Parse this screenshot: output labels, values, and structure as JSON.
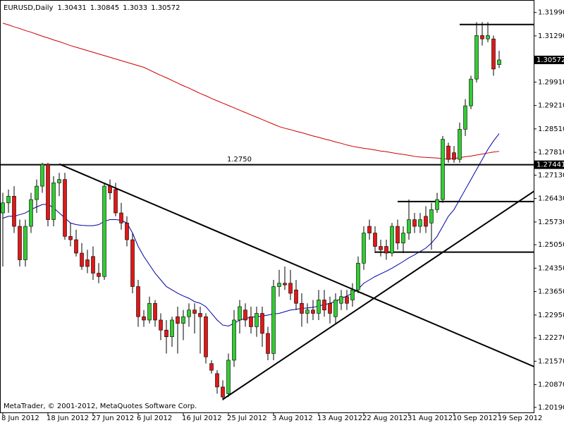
{
  "chart_data": {
    "type": "candlestick",
    "symbol": "EURUSD,Daily",
    "footer": "MetaTrader, © 2001-2012, MetaQuotes Software Corp.",
    "annotation": "1.2750",
    "up_color": "#33cc33",
    "down_color": "#e01818",
    "categories": [
      "8 Jun 2012",
      null,
      null,
      null,
      null,
      null,
      null,
      null,
      "18 Jun 2012",
      null,
      null,
      null,
      null,
      null,
      null,
      null,
      "27 Jun 2012",
      null,
      null,
      null,
      null,
      null,
      null,
      null,
      "6 Jul 2012",
      null,
      null,
      null,
      null,
      null,
      null,
      null,
      "16 Jul 2012",
      null,
      null,
      null,
      null,
      null,
      null,
      null,
      "25 Jul 2012",
      null,
      null,
      null,
      null,
      null,
      null,
      null,
      "3 Aug 2012",
      null,
      null,
      null,
      null,
      null,
      null,
      null,
      "13 Aug 2012",
      null,
      null,
      null,
      null,
      null,
      null,
      null,
      "22 Aug 2012",
      null,
      null,
      null,
      null,
      null,
      null,
      null,
      "31 Aug 2012",
      null,
      null,
      null,
      null,
      null,
      null,
      null,
      "10 Sep 2012",
      null,
      null,
      null,
      null,
      null,
      null,
      null,
      "19 Sep 2012"
    ],
    "ohlc": [
      [
        1.26,
        1.266,
        1.244,
        1.263
      ],
      [
        1.263,
        1.267,
        1.26,
        1.265
      ],
      [
        1.265,
        1.268,
        1.254,
        1.256
      ],
      [
        1.256,
        1.258,
        1.244,
        1.246
      ],
      [
        1.246,
        1.258,
        1.244,
        1.256
      ],
      [
        1.256,
        1.266,
        1.254,
        1.264
      ],
      [
        1.264,
        1.27,
        1.26,
        1.268
      ],
      [
        1.268,
        1.275,
        1.266,
        1.2745
      ],
      [
        1.2745,
        1.275,
        1.256,
        1.258
      ],
      [
        1.258,
        1.271,
        1.256,
        1.269
      ],
      [
        1.269,
        1.272,
        1.265,
        1.27
      ],
      [
        1.27,
        1.272,
        1.252,
        1.253
      ],
      [
        1.253,
        1.257,
        1.25,
        1.252
      ],
      [
        1.252,
        1.255,
        1.247,
        1.248
      ],
      [
        1.248,
        1.251,
        1.243,
        1.244
      ],
      [
        1.246,
        1.249,
        1.242,
        1.244
      ],
      [
        1.247,
        1.25,
        1.24,
        1.242
      ],
      [
        1.242,
        1.245,
        1.239,
        1.241
      ],
      [
        1.241,
        1.269,
        1.24,
        1.268
      ],
      [
        1.268,
        1.27,
        1.264,
        1.266
      ],
      [
        1.267,
        1.269,
        1.259,
        1.26
      ],
      [
        1.26,
        1.263,
        1.255,
        1.257
      ],
      [
        1.257,
        1.259,
        1.25,
        1.252
      ],
      [
        1.252,
        1.254,
        1.236,
        1.238
      ],
      [
        1.238,
        1.24,
        1.226,
        1.229
      ],
      [
        1.229,
        1.231,
        1.226,
        1.228
      ],
      [
        1.228,
        1.235,
        1.227,
        1.233
      ],
      [
        1.233,
        1.234,
        1.226,
        1.228
      ],
      [
        1.228,
        1.23,
        1.222,
        1.225
      ],
      [
        1.225,
        1.228,
        1.218,
        1.223
      ],
      [
        1.223,
        1.229,
        1.22,
        1.228
      ],
      [
        1.229,
        1.232,
        1.218,
        1.227
      ],
      [
        1.227,
        1.231,
        1.222,
        1.229
      ],
      [
        1.229,
        1.233,
        1.226,
        1.231
      ],
      [
        1.231,
        1.233,
        1.224,
        1.23
      ],
      [
        1.23,
        1.232,
        1.218,
        1.229
      ],
      [
        1.229,
        1.23,
        1.215,
        1.217
      ],
      [
        1.215,
        1.216,
        1.212,
        1.213
      ],
      [
        1.212,
        1.213,
        1.206,
        1.208
      ],
      [
        1.208,
        1.21,
        1.204,
        1.205
      ],
      [
        1.206,
        1.218,
        1.205,
        1.216
      ],
      [
        1.216,
        1.231,
        1.214,
        1.228
      ],
      [
        1.228,
        1.234,
        1.224,
        1.232
      ],
      [
        1.231,
        1.233,
        1.226,
        1.228
      ],
      [
        1.229,
        1.232,
        1.224,
        1.226
      ],
      [
        1.226,
        1.232,
        1.223,
        1.23
      ],
      [
        1.23,
        1.232,
        1.22,
        1.224
      ],
      [
        1.224,
        1.226,
        1.216,
        1.218
      ],
      [
        1.218,
        1.24,
        1.216,
        1.238
      ],
      [
        1.238,
        1.243,
        1.235,
        1.239
      ],
      [
        1.239,
        1.244,
        1.237,
        1.2385
      ],
      [
        1.239,
        1.243,
        1.234,
        1.236
      ],
      [
        1.237,
        1.24,
        1.231,
        1.233
      ],
      [
        1.233,
        1.236,
        1.226,
        1.23
      ],
      [
        1.23,
        1.233,
        1.227,
        1.231
      ],
      [
        1.231,
        1.234,
        1.228,
        1.23
      ],
      [
        1.23,
        1.237,
        1.228,
        1.234
      ],
      [
        1.234,
        1.237,
        1.229,
        1.231
      ],
      [
        1.233,
        1.235,
        1.227,
        1.23
      ],
      [
        1.229,
        1.236,
        1.227,
        1.234
      ],
      [
        1.233,
        1.237,
        1.231,
        1.235
      ],
      [
        1.235,
        1.237,
        1.231,
        1.233
      ],
      [
        1.234,
        1.239,
        1.232,
        1.237
      ],
      [
        1.237,
        1.247,
        1.236,
        1.245
      ],
      [
        1.245,
        1.256,
        1.243,
        1.254
      ],
      [
        1.256,
        1.258,
        1.252,
        1.254
      ],
      [
        1.254,
        1.256,
        1.248,
        1.25
      ],
      [
        1.25,
        1.252,
        1.247,
        1.249
      ],
      [
        1.25,
        1.252,
        1.246,
        1.248
      ],
      [
        1.248,
        1.257,
        1.247,
        1.256
      ],
      [
        1.256,
        1.258,
        1.249,
        1.251
      ],
      [
        1.251,
        1.256,
        1.248,
        1.254
      ],
      [
        1.254,
        1.264,
        1.252,
        1.258
      ],
      [
        1.258,
        1.26,
        1.254,
        1.256
      ],
      [
        1.256,
        1.26,
        1.254,
        1.258
      ],
      [
        1.259,
        1.262,
        1.254,
        1.256
      ],
      [
        1.257,
        1.263,
        1.249,
        1.261
      ],
      [
        1.261,
        1.266,
        1.26,
        1.264
      ],
      [
        1.264,
        1.283,
        1.263,
        1.282
      ],
      [
        1.28,
        1.281,
        1.275,
        1.276
      ],
      [
        1.278,
        1.28,
        1.275,
        1.276
      ],
      [
        1.276,
        1.287,
        1.275,
        1.285
      ],
      [
        1.285,
        1.294,
        1.283,
        1.292
      ],
      [
        1.292,
        1.301,
        1.291,
        1.3
      ],
      [
        1.3,
        1.317,
        1.299,
        1.313
      ],
      [
        1.313,
        1.317,
        1.31,
        1.312
      ],
      [
        1.312,
        1.317,
        1.311,
        1.313
      ],
      [
        1.312,
        1.313,
        1.301,
        1.303
      ],
      [
        1.30431,
        1.30845,
        1.3033,
        1.30572
      ]
    ],
    "series": [
      {
        "color": "#cc0000",
        "values": [
          1.3167,
          1.3162,
          1.3156,
          1.3151,
          1.3145,
          1.314,
          1.3134,
          1.3128,
          1.3123,
          1.3117,
          1.3112,
          1.3106,
          1.31,
          1.3095,
          1.309,
          1.3085,
          1.308,
          1.3075,
          1.307,
          1.3065,
          1.306,
          1.3055,
          1.305,
          1.3045,
          1.304,
          1.3035,
          1.3027,
          1.3019,
          1.3011,
          1.3004,
          1.2996,
          1.2988,
          1.298,
          1.2973,
          1.2965,
          1.2957,
          1.295,
          1.2942,
          1.2935,
          1.2928,
          1.2921,
          1.2914,
          1.2907,
          1.29,
          1.2893,
          1.2886,
          1.2879,
          1.2872,
          1.2865,
          1.2858,
          1.2853,
          1.2849,
          1.2844,
          1.284,
          1.2835,
          1.283,
          1.2826,
          1.2821,
          1.2817,
          1.2812,
          1.2808,
          1.2803,
          1.2799,
          1.2796,
          1.2793,
          1.2791,
          1.2788,
          1.2785,
          1.2783,
          1.278,
          1.2777,
          1.2775,
          1.2772,
          1.2769,
          1.2767,
          1.2766,
          1.2765,
          1.2764,
          1.2762,
          1.2761,
          1.2763,
          1.2765,
          1.2768,
          1.277,
          1.2773,
          1.2776,
          1.2779,
          1.2782,
          1.2784
        ]
      },
      {
        "color": "#0000aa",
        "values": [
          1.2584,
          1.259,
          1.259,
          1.2595,
          1.26,
          1.261,
          1.2618,
          1.2625,
          1.2626,
          1.2615,
          1.26,
          1.2585,
          1.257,
          1.2565,
          1.2563,
          1.2562,
          1.2562,
          1.2565,
          1.2575,
          1.258,
          1.258,
          1.2578,
          1.257,
          1.254,
          1.25,
          1.247,
          1.2445,
          1.242,
          1.24,
          1.238,
          1.237,
          1.236,
          1.2352,
          1.2345,
          1.2335,
          1.233,
          1.232,
          1.23,
          1.228,
          1.2265,
          1.2262,
          1.227,
          1.228,
          1.2285,
          1.2288,
          1.229,
          1.2292,
          1.2295,
          1.2298,
          1.23,
          1.2305,
          1.231,
          1.2312,
          1.2315,
          1.2316,
          1.2318,
          1.2322,
          1.2326,
          1.233,
          1.2336,
          1.2344,
          1.2352,
          1.236,
          1.2372,
          1.239,
          1.24,
          1.241,
          1.2418,
          1.2426,
          1.2435,
          1.2445,
          1.2455,
          1.2466,
          1.2475,
          1.2485,
          1.2495,
          1.251,
          1.253,
          1.256,
          1.259,
          1.261,
          1.264,
          1.267,
          1.27,
          1.273,
          1.276,
          1.279,
          1.2815,
          1.2837
        ]
      }
    ],
    "hlines": [
      {
        "price": 1.27441,
        "from": -1
      },
      {
        "price": 1.3163,
        "from": 81
      },
      {
        "price": 1.2634,
        "from": 70
      },
      {
        "price": 1.2483,
        "from": 66
      }
    ],
    "trendlines": [
      {
        "start": [
          10,
          1.2746
        ],
        "end": [
          95,
          1.2135
        ]
      },
      {
        "start": [
          39,
          1.2043
        ],
        "end": [
          95,
          1.2674
        ]
      }
    ],
    "ylim": [
      1.2004,
      1.3232
    ],
    "yticks": [
      {
        "value": 1.3199,
        "label": "1.31990"
      },
      {
        "value": 1.3129,
        "label": "1.31290"
      },
      {
        "value": 1.2991,
        "label": "1.29910"
      },
      {
        "value": 1.2921,
        "label": "1.29210"
      },
      {
        "value": 1.2851,
        "label": "1.28510"
      },
      {
        "value": 1.2781,
        "label": "1.27810"
      },
      {
        "value": 1.2713,
        "label": "1.27130"
      },
      {
        "value": 1.2643,
        "label": "1.26430"
      },
      {
        "value": 1.2573,
        "label": "1.25730"
      },
      {
        "value": 1.2505,
        "label": "1.25050"
      },
      {
        "value": 1.2435,
        "label": "1.24350"
      },
      {
        "value": 1.2365,
        "label": "1.23650"
      },
      {
        "value": 1.2295,
        "label": "1.22950"
      },
      {
        "value": 1.2227,
        "label": "1.22270"
      },
      {
        "value": 1.2157,
        "label": "1.21570"
      },
      {
        "value": 1.2087,
        "label": "1.20870"
      },
      {
        "value": 1.2019,
        "label": "1.20190"
      }
    ]
  }
}
